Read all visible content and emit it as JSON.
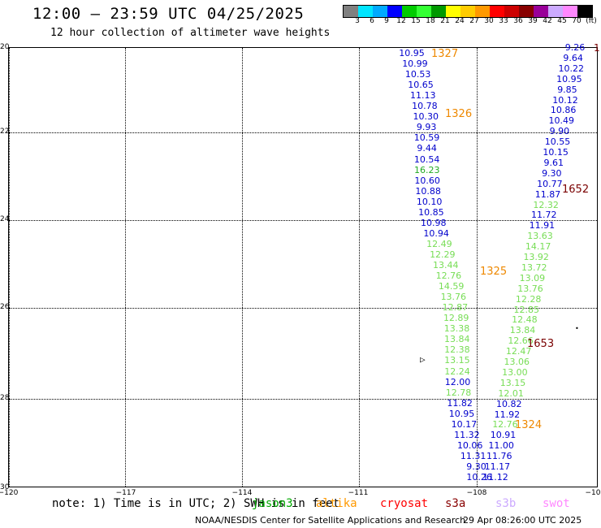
{
  "title": "12:00 — 23:59 UTC 04/25/2025",
  "subtitle": "12 hour collection of altimeter wave heights",
  "scale": {
    "colors": [
      "#808080",
      "#00e5ff",
      "#00aaff",
      "#0000ff",
      "#00cc00",
      "#33ff33",
      "#009900",
      "#ffff00",
      "#ffcc00",
      "#ff9900",
      "#ff0000",
      "#cc0000",
      "#880000",
      "#990099",
      "#ccaaff",
      "#ff88ff",
      "#000000"
    ],
    "labels": [
      "3",
      "6",
      "9",
      "12",
      "15",
      "18",
      "21",
      "24",
      "27",
      "30",
      "33",
      "36",
      "39",
      "42",
      "45",
      "70",
      "(ft)"
    ]
  },
  "axes": {
    "y_labels": [
      "20",
      "22",
      "24",
      "26",
      "28",
      "30"
    ],
    "x_labels": [
      "−120",
      "−117",
      "−114",
      "−111",
      "−108",
      "−10"
    ],
    "right_edge_mark": "1"
  },
  "tracks": [
    {
      "points": [
        [
          "10.95",
          0
        ],
        [
          "10.99",
          0
        ],
        [
          "10.53",
          0
        ],
        [
          "10.65",
          0
        ],
        [
          "11.13",
          0
        ],
        [
          "10.78",
          0
        ],
        [
          "10.30",
          0
        ],
        [
          "9.93",
          0
        ],
        [
          "10.59",
          0
        ],
        [
          "9.44",
          0
        ],
        [
          "10.54",
          0
        ],
        [
          "16.23",
          1
        ],
        [
          "10.60",
          0
        ],
        [
          "10.88",
          0
        ],
        [
          "10.10",
          0
        ],
        [
          "10.85",
          0
        ],
        [
          "10.98",
          0
        ],
        [
          "10.94",
          0
        ],
        [
          "12.49",
          2
        ],
        [
          "12.29",
          2
        ],
        [
          "13.44",
          2
        ],
        [
          "12.76",
          2
        ],
        [
          "14.59",
          2
        ],
        [
          "13.76",
          2
        ],
        [
          "12.87",
          2
        ],
        [
          "12.89",
          2
        ],
        [
          "13.38",
          2
        ],
        [
          "13.84",
          2
        ],
        [
          "12.38",
          2
        ],
        [
          "13.15",
          2
        ],
        [
          "12.24",
          2
        ],
        [
          "12.00",
          0
        ],
        [
          "12.78",
          2
        ],
        [
          "11.82",
          0
        ],
        [
          "10.95",
          0
        ],
        [
          "10.17",
          0
        ],
        [
          "11.32",
          0
        ],
        [
          "10.06",
          0
        ],
        [
          "11.31",
          0
        ],
        [
          "9.30",
          0
        ],
        [
          "10.26",
          0
        ]
      ]
    },
    {
      "points": [
        [
          "9.26",
          0
        ],
        [
          "9.64",
          0
        ],
        [
          "10.22",
          0
        ],
        [
          "10.95",
          0
        ],
        [
          "9.85",
          0
        ],
        [
          "10.12",
          0
        ],
        [
          "10.86",
          0
        ],
        [
          "10.49",
          0
        ],
        [
          "9.90",
          0
        ],
        [
          "10.55",
          0
        ],
        [
          "10.15",
          0
        ],
        [
          "9.61",
          0
        ],
        [
          "9.30",
          0
        ],
        [
          "10.77",
          0
        ],
        [
          "11.87",
          0
        ],
        [
          "12.32",
          2
        ],
        [
          "11.72",
          0
        ],
        [
          "11.91",
          0
        ],
        [
          "13.63",
          2
        ],
        [
          "14.17",
          2
        ],
        [
          "13.92",
          2
        ],
        [
          "13.72",
          2
        ],
        [
          "13.09",
          2
        ],
        [
          "13.76",
          2
        ],
        [
          "12.28",
          2
        ],
        [
          "12.85",
          2
        ],
        [
          "12.48",
          2
        ],
        [
          "13.84",
          2
        ],
        [
          "12.66",
          2
        ],
        [
          "12.47",
          2
        ],
        [
          "13.06",
          2
        ],
        [
          "13.00",
          2
        ],
        [
          "13.15",
          2
        ],
        [
          "12.01",
          2
        ],
        [
          "10.82",
          0
        ],
        [
          "11.92",
          0
        ],
        [
          "12.76",
          2
        ],
        [
          "10.91",
          0
        ],
        [
          "11.00",
          0
        ],
        [
          "11.76",
          0
        ],
        [
          "11.17",
          0
        ],
        [
          "11.12",
          0
        ]
      ]
    }
  ],
  "orbits": [
    {
      "label": "1327",
      "color": "orange"
    },
    {
      "label": "1326",
      "color": "orange"
    },
    {
      "label": "1652",
      "color": "dark"
    },
    {
      "label": "1325",
      "color": "orange"
    },
    {
      "label": "1653",
      "color": "dark"
    },
    {
      "label": "1324",
      "color": "orange"
    }
  ],
  "note": "note: 1) Time is in UTC; 2) SWH is in feet",
  "satellites": [
    {
      "label": "jason3",
      "color": "#00aa00"
    },
    {
      "label": "altika",
      "color": "#ff9900"
    },
    {
      "label": "cryosat",
      "color": "#ff0000"
    },
    {
      "label": "s3a",
      "color": "#880000"
    },
    {
      "label": "s3b",
      "color": "#ccaaff"
    },
    {
      "label": "swot",
      "color": "#ff88ff"
    }
  ],
  "credit": "NOAA/NESDIS Center for Satellite Applications and Research",
  "timestamp": "29 Apr 08:26:00 UTC 2025"
}
